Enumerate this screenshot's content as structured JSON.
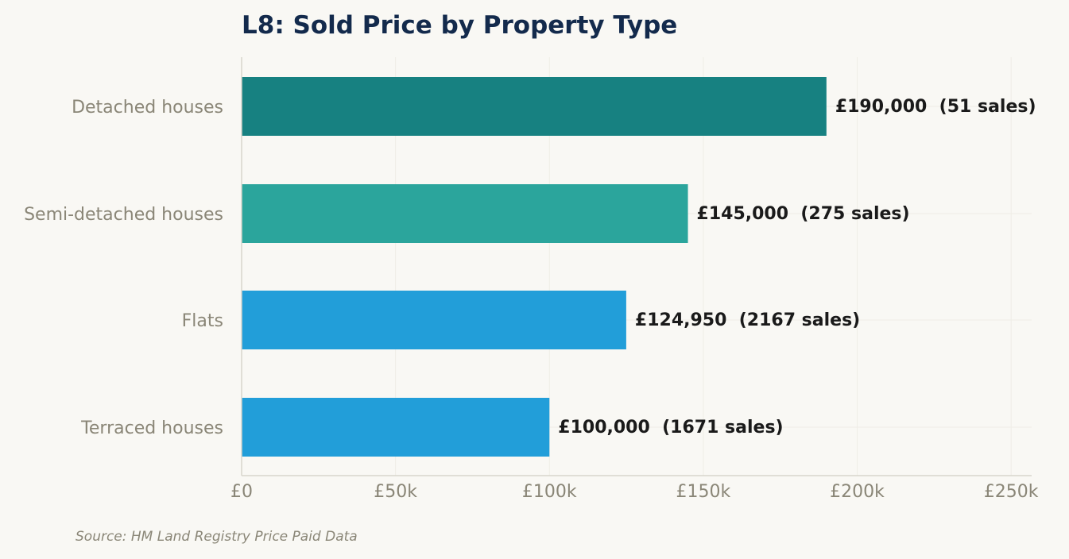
{
  "chart_data": {
    "type": "bar",
    "orientation": "horizontal",
    "title": "L8: Sold Price by Property Type",
    "categories": [
      "Detached houses",
      "Semi-detached houses",
      "Flats",
      "Terraced houses"
    ],
    "values": [
      190000,
      145000,
      124950,
      100000
    ],
    "sales": [
      51,
      275,
      2167,
      1671
    ],
    "data_labels": [
      "£190,000  (51 sales)",
      "£145,000  (275 sales)",
      "£124,950  (2167 sales)",
      "£100,000  (1671 sales)"
    ],
    "bar_colors": [
      "#178181",
      "#2ba59c",
      "#229ed9",
      "#229ed9"
    ],
    "xlim": [
      0,
      256667
    ],
    "x_ticks": [
      0,
      50000,
      100000,
      150000,
      200000,
      250000
    ],
    "x_tick_labels": [
      "£0",
      "£50k",
      "£100k",
      "£150k",
      "£200k",
      "£250k"
    ],
    "xlabel": "",
    "ylabel": "",
    "grid": true,
    "legend": "none"
  },
  "colors": {
    "background": "#f9f8f4",
    "title": "#132a4c",
    "tick_label": "#8a8677",
    "data_label": "#1a1a1a",
    "axis": "#d8d6cc",
    "grid": "#efede6"
  },
  "source": "Source: HM Land Registry Price Paid Data"
}
